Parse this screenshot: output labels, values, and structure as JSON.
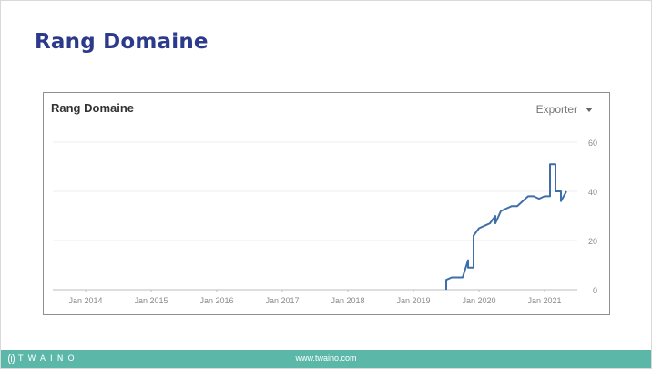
{
  "slide": {
    "title": "Rang Domaine"
  },
  "panel": {
    "title": "Rang Domaine",
    "export_label": "Exporter",
    "export_icon": "caret-down-icon"
  },
  "chart_data": {
    "type": "line",
    "title": "Rang Domaine",
    "xlabel": "",
    "ylabel": "",
    "x_ticks": [
      "Jan 2014",
      "Jan 2015",
      "Jan 2016",
      "Jan 2017",
      "Jan 2018",
      "Jan 2019",
      "Jan 2020",
      "Jan 2021"
    ],
    "y_ticks": [
      60,
      40,
      20,
      0
    ],
    "ylim": [
      0,
      60
    ],
    "xlim": [
      "2013-07",
      "2021-07"
    ],
    "grid": true,
    "y_axis_position": "right",
    "line_color": "#3f6fa8",
    "points": [
      {
        "x": "2019-07",
        "y": 0
      },
      {
        "x": "2019-07",
        "y": 4
      },
      {
        "x": "2019-08",
        "y": 5
      },
      {
        "x": "2019-09",
        "y": 5
      },
      {
        "x": "2019-10",
        "y": 5
      },
      {
        "x": "2019-11",
        "y": 12
      },
      {
        "x": "2019-11",
        "y": 9
      },
      {
        "x": "2019-12",
        "y": 9
      },
      {
        "x": "2019-12",
        "y": 22
      },
      {
        "x": "2020-01",
        "y": 25
      },
      {
        "x": "2020-02",
        "y": 26
      },
      {
        "x": "2020-03",
        "y": 27
      },
      {
        "x": "2020-04",
        "y": 30
      },
      {
        "x": "2020-04",
        "y": 27
      },
      {
        "x": "2020-05",
        "y": 32
      },
      {
        "x": "2020-06",
        "y": 33
      },
      {
        "x": "2020-07",
        "y": 34
      },
      {
        "x": "2020-08",
        "y": 34
      },
      {
        "x": "2020-09",
        "y": 36
      },
      {
        "x": "2020-10",
        "y": 38
      },
      {
        "x": "2020-11",
        "y": 38
      },
      {
        "x": "2020-12",
        "y": 37
      },
      {
        "x": "2021-01",
        "y": 38
      },
      {
        "x": "2021-02",
        "y": 38
      },
      {
        "x": "2021-02",
        "y": 51
      },
      {
        "x": "2021-03",
        "y": 51
      },
      {
        "x": "2021-03",
        "y": 40
      },
      {
        "x": "2021-04",
        "y": 40
      },
      {
        "x": "2021-04",
        "y": 36
      },
      {
        "x": "2021-05",
        "y": 40
      }
    ]
  },
  "footer": {
    "logo_text": "TWAINO",
    "url": "www.twaino.com",
    "background": "#5bb8a9"
  }
}
